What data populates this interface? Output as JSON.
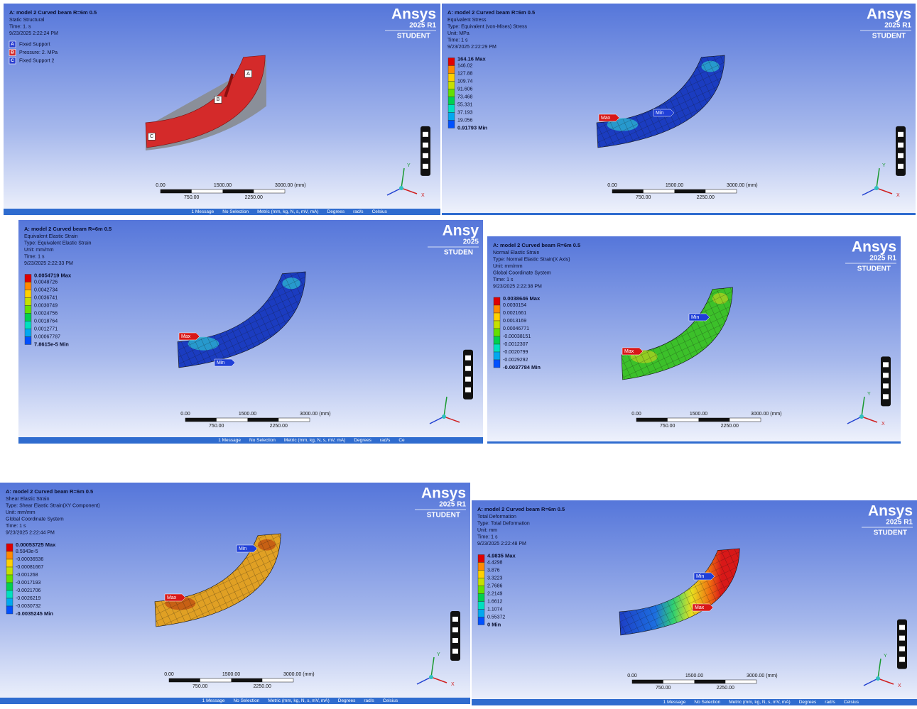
{
  "panels": [
    {
      "title": "A: model 2 Curved beam R=6m 0.5",
      "info": [
        "Static Structural",
        "Time: 1. s",
        "9/23/2025 2:22:24 PM"
      ],
      "supports": [
        {
          "key": "A",
          "label": "Fixed Support"
        },
        {
          "key": "B",
          "label": "Pressure: 2. MPa"
        },
        {
          "key": "C",
          "label": "Fixed Support 2"
        }
      ],
      "logo": "Ansys",
      "version": "2025 R1",
      "edition": "STUDENT",
      "scale": {
        "top": [
          "0.00",
          "1500.00",
          "3000.00 (mm)"
        ],
        "bottom": [
          "750.00",
          "2250.00"
        ]
      },
      "axes": [
        "Y",
        "X"
      ],
      "status": [
        "1 Message",
        "No Selection",
        "Metric (mm, kg, N, s, mV, mA)",
        "Degrees",
        "rad/s",
        "Celsius"
      ]
    },
    {
      "title": "A: model 2 Curved beam R=6m 0.5",
      "info": [
        "Equivalent Stress",
        "Type: Equivalent (von-Mises) Stress",
        "Unit: MPa",
        "Time: 1 s",
        "9/23/2025 2:22:29 PM"
      ],
      "legend": [
        "164.16 Max",
        "146.02",
        "127.88",
        "109.74",
        "91.606",
        "73.468",
        "55.331",
        "37.193",
        "19.056",
        "0.91793 Min"
      ],
      "tags": [
        "Max",
        "Min"
      ],
      "logo": "Ansys",
      "version": "2025 R1",
      "edition": "STUDENT",
      "scale": {
        "top": [
          "0.00",
          "1500.00",
          "3000.00 (mm)"
        ],
        "bottom": [
          "750.00",
          "2250.00"
        ]
      },
      "axes": [
        "Y",
        "X"
      ]
    },
    {
      "title": "A: model 2 Curved beam R=6m 0.5",
      "info": [
        "Equivalent Elastic Strain",
        "Type: Equivalent Elastic Strain",
        "Unit: mm/mm",
        "Time: 1 s",
        "9/23/2025 2:22:33 PM"
      ],
      "legend": [
        "0.0054719 Max",
        "0.0048726",
        "0.0042734",
        "0.0036741",
        "0.0030749",
        "0.0024756",
        "0.0018764",
        "0.0012771",
        "0.00067787",
        "7.8615e-5 Min"
      ],
      "tags": [
        "Max",
        "Min"
      ],
      "logo": "Ansy",
      "version": "2025",
      "edition": "STUDEN",
      "scale": {
        "top": [
          "0.00",
          "1500.00",
          "3000.00 (mm)"
        ],
        "bottom": [
          "750.00",
          "2250.00"
        ]
      },
      "status": [
        "1 Message",
        "No Selection",
        "Metric (mm, kg, N, s, mV, mA)",
        "Degrees",
        "rad/s",
        "Ce"
      ]
    },
    {
      "title": "A: model 2 Curved beam R=6m 0.5",
      "info": [
        "Normal Elastic Strain",
        "Type: Normal Elastic Strain(X Axis)",
        "Unit: mm/mm",
        "Global Coordinate System",
        "Time: 1 s",
        "9/23/2025 2:22:38 PM"
      ],
      "legend": [
        "0.0038646 Max",
        "0.0030154",
        "0.0021661",
        "0.0013169",
        "0.00046771",
        "-0.00038151",
        "-0.0012307",
        "-0.0020799",
        "-0.0029292",
        "-0.0037784 Min"
      ],
      "tags": [
        "Max",
        "Min"
      ],
      "logo": "Ansys",
      "version": "2025 R1",
      "edition": "STUDENT",
      "scale": {
        "top": [
          "0.00",
          "1500.00",
          "3000.00 (mm)"
        ],
        "bottom": [
          "750.00",
          "2250.00"
        ]
      },
      "axes": [
        "Y",
        "X"
      ]
    },
    {
      "title": "A: model 2 Curved beam R=6m 0.5",
      "info": [
        "Shear Elastic Strain",
        "Type: Shear Elastic Strain(XY Component)",
        "Unit: mm/mm",
        "Global Coordinate System",
        "Time: 1 s",
        "9/23/2025 2:22:44 PM"
      ],
      "legend": [
        "0.00053725 Max",
        "8.5943e-5",
        "-0.00036536",
        "-0.00081667",
        "-0.001268",
        "-0.0017193",
        "-0.0021706",
        "-0.0026219",
        "-0.0030732",
        "-0.0035245 Min"
      ],
      "tags": [
        "Max",
        "Min"
      ],
      "logo": "Ansys",
      "version": "2025 R1",
      "edition": "STUDENT",
      "scale": {
        "top": [
          "0.00",
          "1500.00",
          "3000.00 (mm)"
        ],
        "bottom": [
          "750.00",
          "2250.00"
        ]
      },
      "axes": [
        "Y",
        "X"
      ],
      "status": [
        "1 Message",
        "No Selection",
        "Metric (mm, kg, N, s, mV, mA)",
        "Degrees",
        "rad/s",
        "Celsius"
      ]
    },
    {
      "title": "A: model 2 Curved beam R=6m 0.5",
      "info": [
        "Total Deformation",
        "Type: Total Deformation",
        "Unit: mm",
        "Time: 1 s",
        "9/23/2025 2:22:48 PM"
      ],
      "legend": [
        "4.9835 Max",
        "4.4298",
        "3.876",
        "3.3223",
        "2.7686",
        "2.2149",
        "1.6612",
        "1.1074",
        "0.55372",
        "0 Min"
      ],
      "tags": [
        "Min",
        "Max"
      ],
      "logo": "Ansys",
      "version": "2025 R1",
      "edition": "STUDENT",
      "scale": {
        "top": [
          "0.00",
          "1500.00",
          "3000.00 (mm)"
        ],
        "bottom": [
          "750.00",
          "2250.00"
        ]
      },
      "axes": [
        "Y",
        "X"
      ],
      "status": [
        "1 Message",
        "No Selection",
        "Metric (mm, kg, N, s, mV, mA)",
        "Degrees",
        "rad/s",
        "Celsius"
      ]
    }
  ]
}
